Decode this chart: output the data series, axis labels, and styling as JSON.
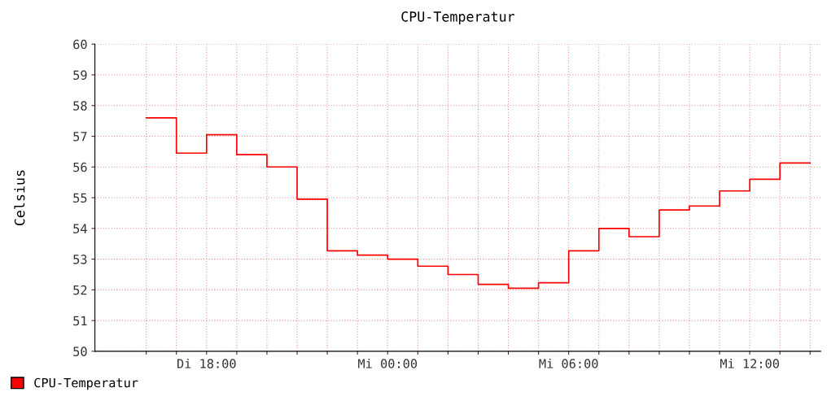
{
  "chart_data": {
    "type": "step",
    "title": "CPU-Temperatur",
    "ylabel": "Celsius",
    "categories": [
      null,
      null,
      "Di 18:00",
      null,
      null,
      null,
      null,
      null,
      "Mi 00:00",
      null,
      null,
      null,
      null,
      null,
      "Mi 06:00",
      null,
      null,
      null,
      null,
      null,
      "Mi 12:00",
      null,
      null
    ],
    "series": [
      {
        "name": "CPU-Temperatur",
        "color": "#ff0000",
        "values": [
          57.6,
          56.45,
          57.05,
          56.4,
          56.0,
          54.95,
          53.27,
          53.13,
          53.0,
          52.77,
          52.5,
          52.18,
          52.05,
          52.23,
          53.27,
          54.0,
          53.73,
          54.6,
          54.73,
          55.22,
          55.6,
          56.13,
          56.13
        ]
      }
    ],
    "ylim": [
      50,
      60
    ],
    "yticks": [
      50,
      51,
      52,
      53,
      54,
      55,
      56,
      57,
      58,
      59,
      60
    ],
    "grid": true,
    "legend": "bottom left",
    "line_style": "solid",
    "marker": "none"
  }
}
